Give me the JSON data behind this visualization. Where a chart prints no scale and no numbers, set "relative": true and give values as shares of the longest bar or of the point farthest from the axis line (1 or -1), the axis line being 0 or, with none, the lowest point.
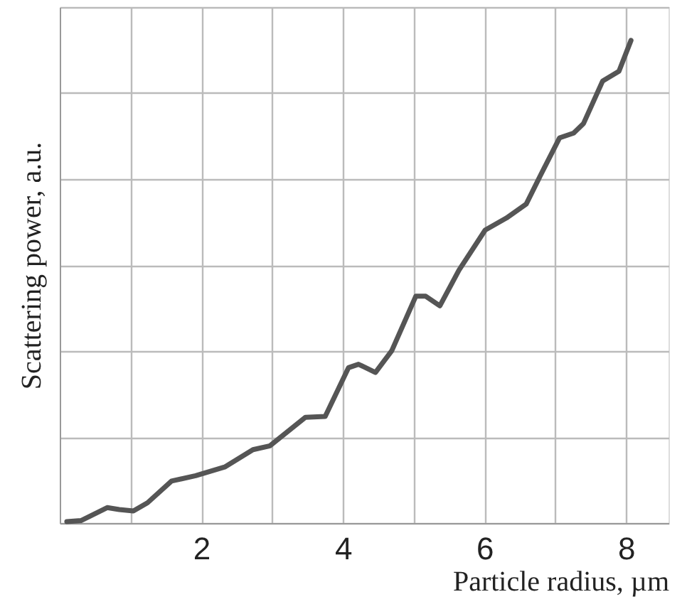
{
  "chart_data": {
    "type": "line",
    "relative": true,
    "xlabel": "Particle radius, µm",
    "ylabel": "Scattering power, a.u.",
    "x": [
      0.1,
      0.3,
      0.67,
      0.84,
      1.04,
      1.24,
      1.58,
      1.92,
      2.33,
      2.73,
      2.97,
      3.47,
      3.75,
      4.08,
      4.22,
      4.46,
      4.69,
      5.03,
      5.17,
      5.37,
      5.64,
      6.01,
      6.31,
      6.59,
      6.79,
      7.06,
      7.26,
      7.4,
      7.67,
      7.9,
      8.07
    ],
    "series": [
      {
        "color": "#555555",
        "values": [
          0.003,
          0.005,
          0.032,
          0.028,
          0.025,
          0.042,
          0.087,
          0.098,
          0.116,
          0.152,
          0.16,
          0.219,
          0.221,
          0.322,
          0.329,
          0.312,
          0.357,
          0.47,
          0.47,
          0.45,
          0.524,
          0.607,
          0.632,
          0.661,
          0.72,
          0.798,
          0.808,
          0.828,
          0.916,
          0.936,
          1.0
        ]
      }
    ],
    "xlim": [
      0,
      8.6
    ],
    "xticks": [
      {
        "value": 1,
        "label": null
      },
      2,
      {
        "value": 3,
        "label": null
      },
      4,
      {
        "value": 5,
        "label": null
      },
      6,
      {
        "value": 7,
        "label": null
      },
      8
    ],
    "grid": true,
    "line_style": "solid",
    "marker": "none"
  }
}
